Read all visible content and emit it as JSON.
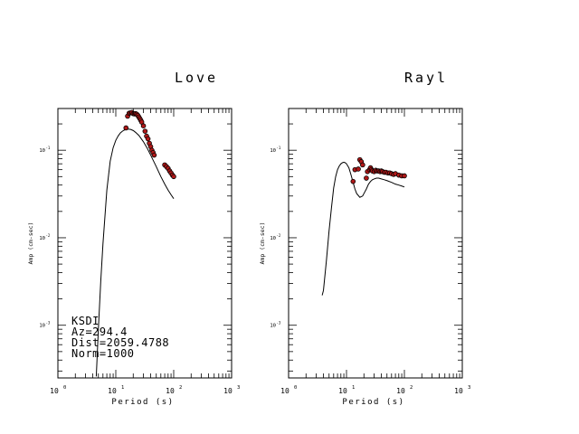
{
  "chart_data": [
    {
      "type": "scatter",
      "title": "Love",
      "xlabel": "Period (s)",
      "ylabel": "Amp (cm-sec)",
      "xscale": "log",
      "yscale": "log",
      "xlim": [
        1,
        1000
      ],
      "ylim": [
        0.00025,
        0.3
      ],
      "x_ticks": [
        {
          "base": "10",
          "exp": "0"
        },
        {
          "base": "10",
          "exp": "1"
        },
        {
          "base": "10",
          "exp": "2"
        },
        {
          "base": "10",
          "exp": "3"
        }
      ],
      "y_ticks": [
        {
          "value": 0.1,
          "base": "10",
          "exp": "-1"
        },
        {
          "value": 0.01,
          "base": "10",
          "exp": "-2"
        },
        {
          "value": 0.001,
          "base": "10",
          "exp": "-3"
        }
      ],
      "annotations": [
        "KSDI",
        "Az=294.4",
        "Dist=2059.4788",
        "Norm=1000"
      ],
      "series": [
        {
          "style": "line",
          "x": [
            4.6,
            5,
            5.5,
            6,
            7,
            8,
            9,
            10,
            11,
            12,
            13,
            14,
            15,
            16,
            17,
            18,
            20,
            22,
            25,
            30,
            35,
            40,
            50,
            60,
            70,
            80,
            90,
            100
          ],
          "y": [
            0.00026,
            0.0009,
            0.0032,
            0.0085,
            0.035,
            0.075,
            0.107,
            0.13,
            0.146,
            0.158,
            0.165,
            0.17,
            0.173,
            0.174,
            0.174,
            0.173,
            0.168,
            0.16,
            0.148,
            0.125,
            0.105,
            0.088,
            0.065,
            0.05,
            0.041,
            0.035,
            0.031,
            0.028
          ]
        },
        {
          "style": "points",
          "x": [
            15,
            16,
            17,
            18,
            19,
            20,
            21,
            22,
            23,
            24,
            25,
            26,
            27,
            28,
            30,
            32,
            34,
            36,
            38,
            40,
            42,
            44,
            46,
            70,
            75,
            80,
            85,
            90,
            95,
            100
          ],
          "y": [
            0.18,
            0.245,
            0.265,
            0.268,
            0.27,
            0.262,
            0.26,
            0.262,
            0.258,
            0.25,
            0.24,
            0.23,
            0.22,
            0.21,
            0.19,
            0.165,
            0.145,
            0.135,
            0.12,
            0.11,
            0.1,
            0.094,
            0.088,
            0.068,
            0.065,
            0.062,
            0.058,
            0.055,
            0.052,
            0.05
          ]
        }
      ]
    },
    {
      "type": "scatter",
      "title": "Rayl",
      "xlabel": "Period (s)",
      "ylabel": "Amp (cm-sec)",
      "xscale": "log",
      "yscale": "log",
      "xlim": [
        1,
        1000
      ],
      "ylim": [
        0.00025,
        0.3
      ],
      "x_ticks": [
        {
          "base": "10",
          "exp": "0"
        },
        {
          "base": "10",
          "exp": "1"
        },
        {
          "base": "10",
          "exp": "2"
        },
        {
          "base": "10",
          "exp": "3"
        }
      ],
      "y_ticks": [
        {
          "value": 0.1,
          "base": "10",
          "exp": "-1"
        },
        {
          "value": 0.01,
          "base": "10",
          "exp": "-2"
        },
        {
          "value": 0.001,
          "base": "10",
          "exp": "-3"
        }
      ],
      "annotations": [],
      "series": [
        {
          "style": "line",
          "x": [
            3.8,
            4,
            4.5,
            5,
            5.5,
            6,
            6.5,
            7,
            7.5,
            8,
            8.5,
            9,
            9.5,
            10,
            11,
            12,
            13,
            14,
            15,
            17,
            19,
            20,
            22,
            24,
            26,
            28,
            30,
            33,
            36,
            40,
            45,
            50,
            60,
            70,
            80,
            90,
            100
          ],
          "y": [
            0.0022,
            0.0025,
            0.0055,
            0.012,
            0.022,
            0.037,
            0.05,
            0.06,
            0.066,
            0.07,
            0.072,
            0.073,
            0.072,
            0.07,
            0.063,
            0.052,
            0.043,
            0.036,
            0.032,
            0.029,
            0.03,
            0.032,
            0.036,
            0.041,
            0.044,
            0.046,
            0.047,
            0.048,
            0.048,
            0.047,
            0.046,
            0.045,
            0.043,
            0.041,
            0.04,
            0.039,
            0.038
          ]
        },
        {
          "style": "points",
          "x": [
            13,
            14,
            16,
            17,
            18,
            19,
            22,
            23,
            25,
            26,
            27,
            28,
            30,
            32,
            34,
            36,
            38,
            40,
            42,
            45,
            48,
            52,
            56,
            60,
            65,
            70,
            80,
            90,
            100
          ],
          "y": [
            0.044,
            0.06,
            0.061,
            0.078,
            0.074,
            0.068,
            0.048,
            0.057,
            0.06,
            0.063,
            0.06,
            0.058,
            0.057,
            0.059,
            0.058,
            0.058,
            0.057,
            0.058,
            0.057,
            0.056,
            0.056,
            0.055,
            0.055,
            0.054,
            0.053,
            0.054,
            0.052,
            0.051,
            0.051
          ]
        }
      ]
    }
  ]
}
